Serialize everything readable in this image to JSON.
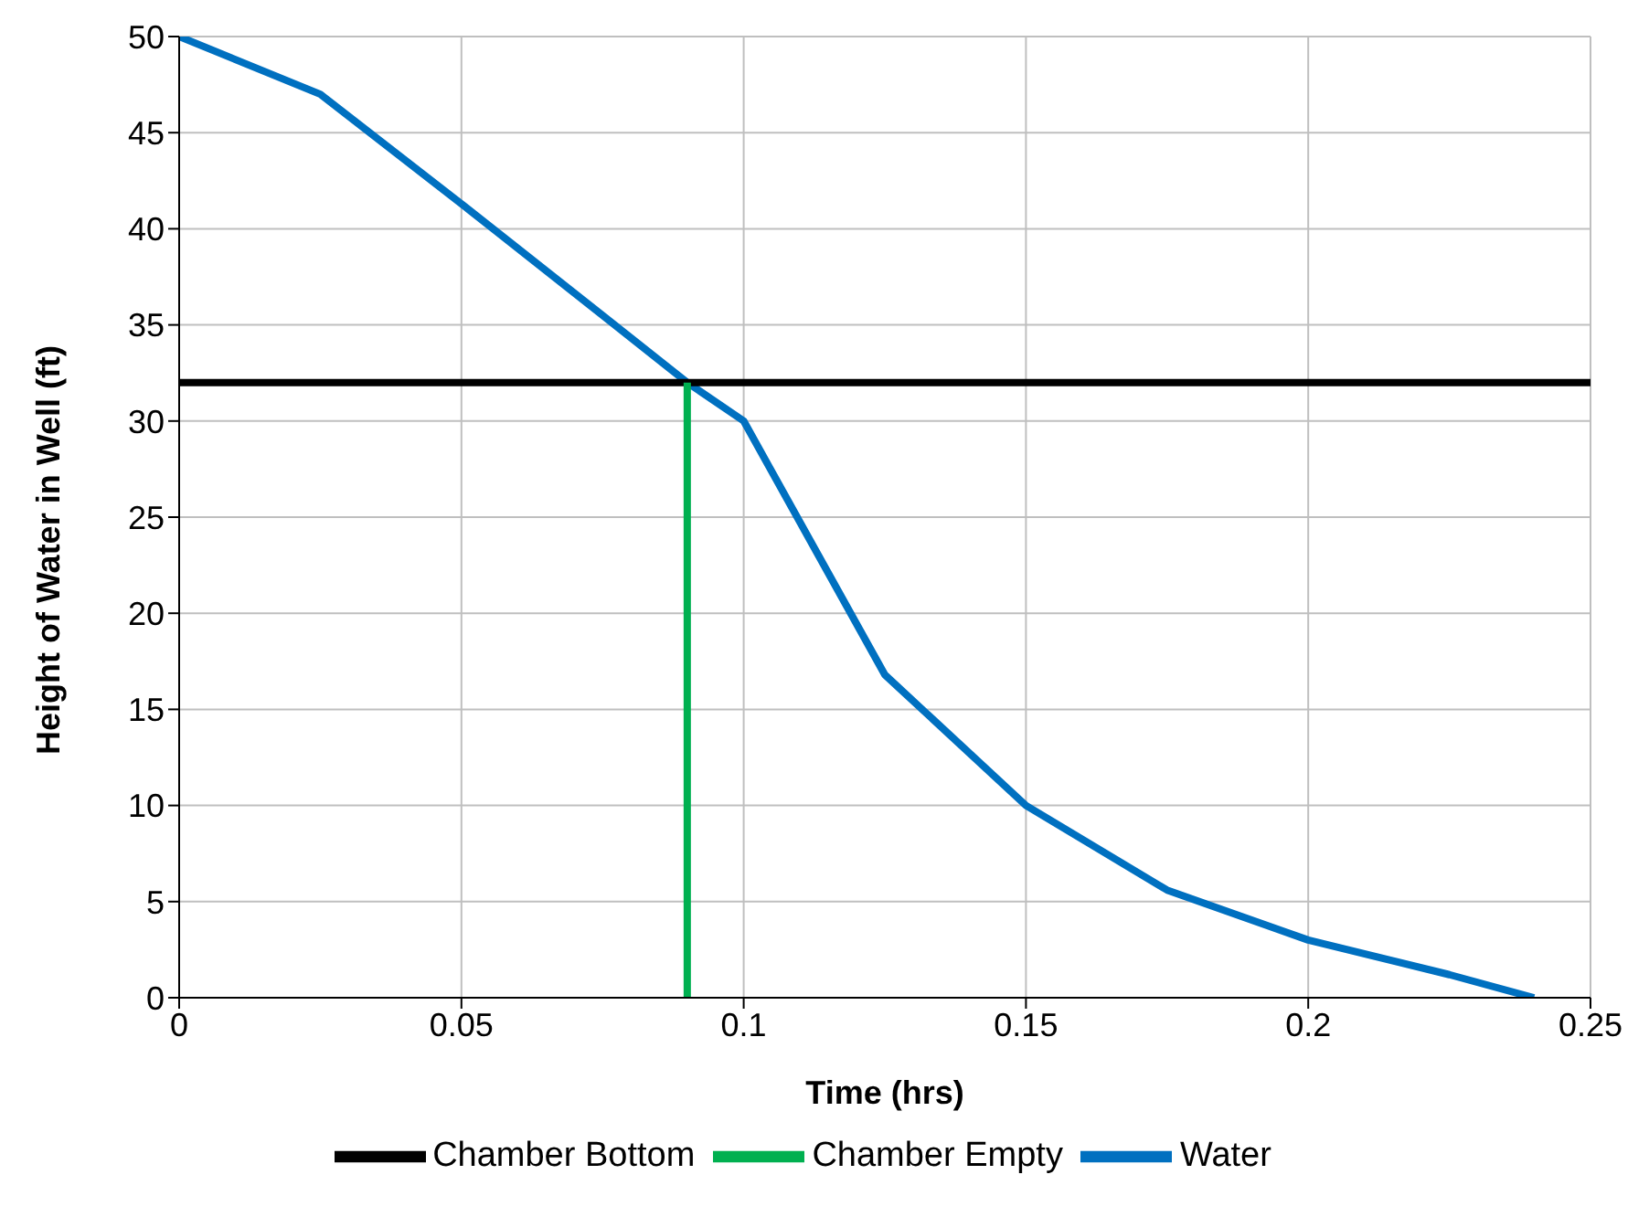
{
  "chart_data": {
    "type": "line",
    "xlabel": "Time (hrs)",
    "ylabel": "Height of Water in Well (ft)",
    "xlim": [
      0,
      0.25
    ],
    "ylim": [
      0,
      50
    ],
    "xticks": [
      0,
      0.05,
      0.1,
      0.15,
      0.2,
      0.25
    ],
    "yticks": [
      0,
      5,
      10,
      15,
      20,
      25,
      30,
      35,
      40,
      45,
      50
    ],
    "grid": true,
    "legend": "bottom",
    "marker": "none",
    "line_style": "solid",
    "series": [
      {
        "name": "Water",
        "color": "#0070c0",
        "x": [
          0,
          0.025,
          0.05,
          0.075,
          0.09,
          0.1,
          0.125,
          0.15,
          0.175,
          0.2,
          0.225,
          0.24
        ],
        "values": [
          50,
          47,
          41.3,
          35.5,
          32,
          30,
          16.8,
          10,
          5.6,
          3,
          1.2,
          0
        ]
      },
      {
        "name": "Chamber Bottom",
        "color": "#000000",
        "x": [
          0,
          0.25
        ],
        "values": [
          32,
          32
        ]
      },
      {
        "name": "Chamber Empty",
        "color": "#00b050",
        "x": [
          0.09,
          0.09
        ],
        "values": [
          0,
          32
        ]
      }
    ]
  }
}
